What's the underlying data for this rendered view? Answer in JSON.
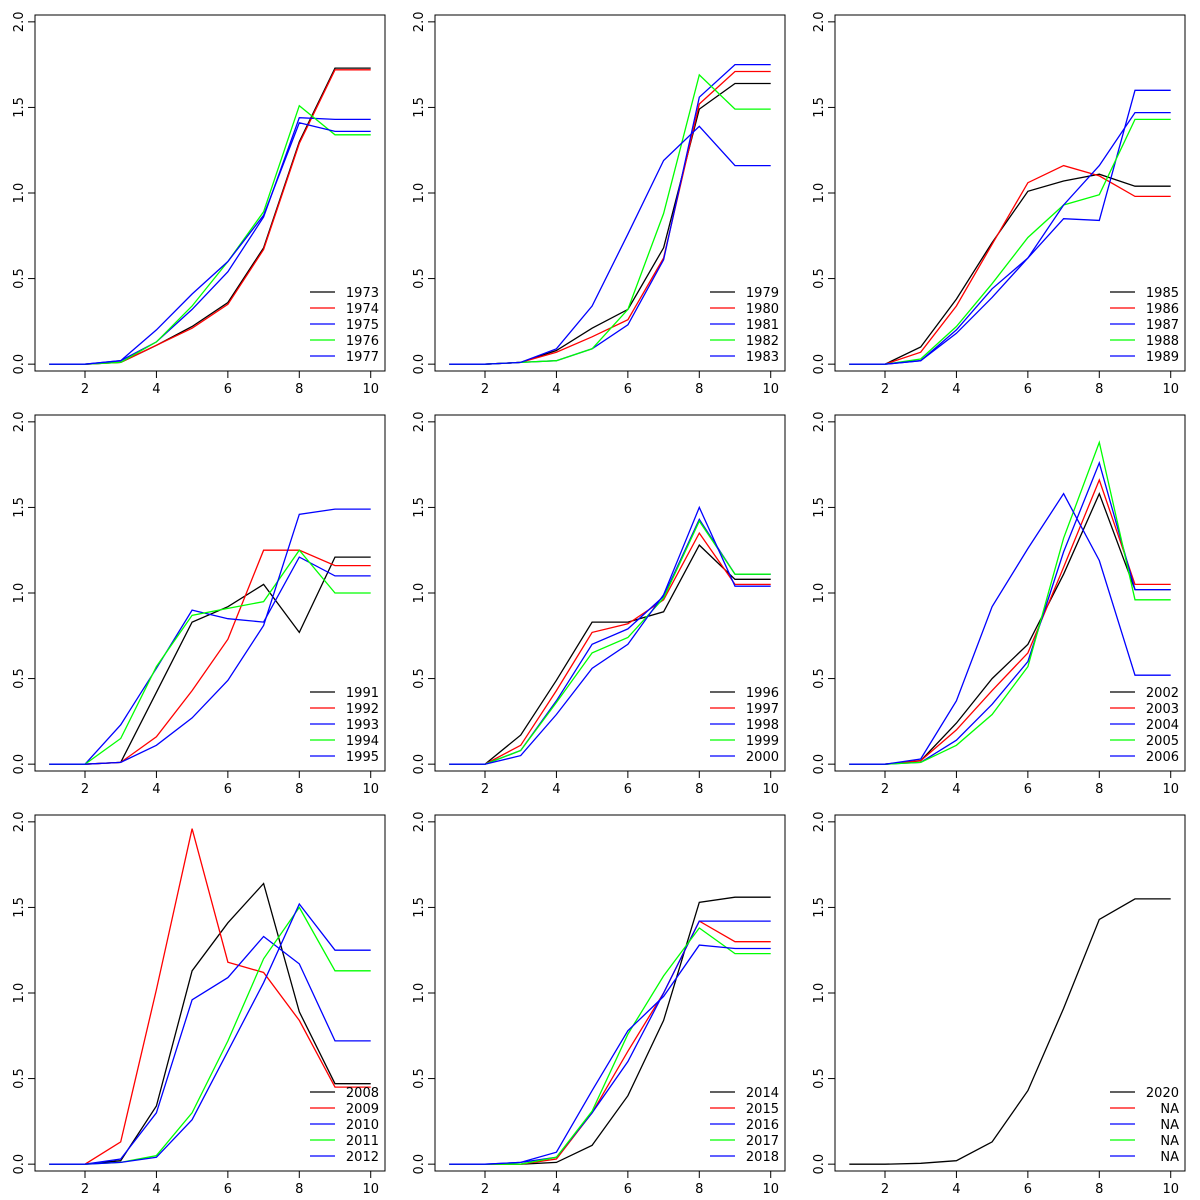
{
  "legend_colors": [
    "#000000",
    "#ff0000",
    "#0000ff",
    "#00ff00",
    "#0000ff"
  ],
  "chart_data": [
    {
      "type": "line",
      "x": [
        1,
        2,
        3,
        4,
        5,
        6,
        7,
        8,
        9,
        10
      ],
      "xticks": [
        2,
        4,
        6,
        8,
        10
      ],
      "yticks": [
        "0.0",
        "0.5",
        "1.0",
        "1.5",
        "2.0"
      ],
      "xlim": [
        0.6,
        10.4
      ],
      "ylim": [
        -0.04,
        2.04
      ],
      "legend_position": "bottom-right",
      "series": [
        {
          "name": "1973",
          "values": [
            0,
            0,
            0.01,
            0.11,
            0.22,
            0.36,
            0.68,
            1.3,
            1.73,
            1.73
          ]
        },
        {
          "name": "1974",
          "values": [
            0,
            0,
            0.01,
            0.11,
            0.21,
            0.35,
            0.67,
            1.29,
            1.72,
            1.72
          ]
        },
        {
          "name": "1975",
          "values": [
            0,
            0,
            0.02,
            0.13,
            0.32,
            0.54,
            0.86,
            1.44,
            1.43,
            1.43
          ]
        },
        {
          "name": "1976",
          "values": [
            0,
            0,
            0.01,
            0.13,
            0.34,
            0.6,
            0.89,
            1.51,
            1.34,
            1.34
          ]
        },
        {
          "name": "1977",
          "values": [
            0,
            0,
            0.02,
            0.2,
            0.41,
            0.6,
            0.87,
            1.41,
            1.36,
            1.36
          ]
        }
      ]
    },
    {
      "type": "line",
      "x": [
        1,
        2,
        3,
        4,
        5,
        6,
        7,
        8,
        9,
        10
      ],
      "xticks": [
        2,
        4,
        6,
        8,
        10
      ],
      "yticks": [
        "0.0",
        "0.5",
        "1.0",
        "1.5",
        "2.0"
      ],
      "xlim": [
        0.6,
        10.4
      ],
      "ylim": [
        -0.04,
        2.04
      ],
      "legend_position": "bottom-right",
      "series": [
        {
          "name": "1979",
          "values": [
            0,
            0,
            0.01,
            0.08,
            0.21,
            0.32,
            0.68,
            1.49,
            1.64,
            1.64
          ]
        },
        {
          "name": "1980",
          "values": [
            0,
            0,
            0.01,
            0.07,
            0.16,
            0.26,
            0.62,
            1.52,
            1.71,
            1.71
          ]
        },
        {
          "name": "1981",
          "values": [
            0,
            0,
            0.01,
            0.02,
            0.09,
            0.23,
            0.61,
            1.56,
            1.75,
            1.75
          ]
        },
        {
          "name": "1982",
          "values": [
            0,
            0,
            0.01,
            0.02,
            0.09,
            0.32,
            0.88,
            1.69,
            1.49,
            1.49
          ]
        },
        {
          "name": "1983",
          "values": [
            0,
            0,
            0.01,
            0.09,
            0.34,
            0.76,
            1.19,
            1.39,
            1.16,
            1.16
          ]
        }
      ]
    },
    {
      "type": "line",
      "x": [
        1,
        2,
        3,
        4,
        5,
        6,
        7,
        8,
        9,
        10
      ],
      "xticks": [
        2,
        4,
        6,
        8,
        10
      ],
      "yticks": [
        "0.0",
        "0.5",
        "1.0",
        "1.5",
        "2.0"
      ],
      "xlim": [
        0.6,
        10.4
      ],
      "ylim": [
        -0.04,
        2.04
      ],
      "legend_position": "bottom-right",
      "series": [
        {
          "name": "1985",
          "values": [
            0,
            0,
            0.1,
            0.38,
            0.71,
            1.01,
            1.07,
            1.11,
            1.04,
            1.04
          ]
        },
        {
          "name": "1986",
          "values": [
            0,
            0,
            0.07,
            0.34,
            0.7,
            1.06,
            1.16,
            1.1,
            0.98,
            0.98
          ]
        },
        {
          "name": "1987",
          "values": [
            0,
            0,
            0.02,
            0.2,
            0.44,
            0.62,
            0.85,
            0.84,
            1.6,
            1.6
          ]
        },
        {
          "name": "1988",
          "values": [
            0,
            0,
            0.03,
            0.22,
            0.47,
            0.74,
            0.93,
            0.99,
            1.43,
            1.43
          ]
        },
        {
          "name": "1989",
          "values": [
            0,
            0,
            0.02,
            0.18,
            0.39,
            0.62,
            0.93,
            1.16,
            1.47,
            1.47
          ]
        }
      ]
    },
    {
      "type": "line",
      "x": [
        1,
        2,
        3,
        4,
        5,
        6,
        7,
        8,
        9,
        10
      ],
      "xticks": [
        2,
        4,
        6,
        8,
        10
      ],
      "yticks": [
        "0.0",
        "0.5",
        "1.0",
        "1.5",
        "2.0"
      ],
      "xlim": [
        0.6,
        10.4
      ],
      "ylim": [
        -0.04,
        2.04
      ],
      "legend_position": "bottom-right",
      "series": [
        {
          "name": "1991",
          "values": [
            0,
            0,
            0.01,
            0.42,
            0.83,
            0.92,
            1.05,
            0.77,
            1.21,
            1.21
          ]
        },
        {
          "name": "1992",
          "values": [
            0,
            0,
            0.01,
            0.16,
            0.43,
            0.73,
            1.25,
            1.25,
            1.16,
            1.16
          ]
        },
        {
          "name": "1993",
          "values": [
            0,
            0,
            0.23,
            0.56,
            0.9,
            0.85,
            0.83,
            1.21,
            1.1,
            1.1
          ]
        },
        {
          "name": "1994",
          "values": [
            0,
            0,
            0.15,
            0.57,
            0.87,
            0.91,
            0.95,
            1.25,
            1.0,
            1.0
          ]
        },
        {
          "name": "1995",
          "values": [
            0,
            0,
            0.01,
            0.11,
            0.27,
            0.49,
            0.81,
            1.46,
            1.49,
            1.49
          ]
        }
      ]
    },
    {
      "type": "line",
      "x": [
        1,
        2,
        3,
        4,
        5,
        6,
        7,
        8,
        9,
        10
      ],
      "xticks": [
        2,
        4,
        6,
        8,
        10
      ],
      "yticks": [
        "0.0",
        "0.5",
        "1.0",
        "1.5",
        "2.0"
      ],
      "xlim": [
        0.6,
        10.4
      ],
      "ylim": [
        -0.04,
        2.04
      ],
      "legend_position": "bottom-right",
      "series": [
        {
          "name": "1996",
          "values": [
            0,
            0,
            0.17,
            0.49,
            0.83,
            0.83,
            0.89,
            1.28,
            1.08,
            1.08
          ]
        },
        {
          "name": "1997",
          "values": [
            0,
            0,
            0.11,
            0.43,
            0.77,
            0.82,
            0.96,
            1.35,
            1.05,
            1.05
          ]
        },
        {
          "name": "1998",
          "values": [
            0,
            0,
            0.08,
            0.37,
            0.7,
            0.79,
            0.98,
            1.43,
            1.11,
            1.11
          ]
        },
        {
          "name": "1999",
          "values": [
            0,
            0,
            0.08,
            0.36,
            0.65,
            0.74,
            0.97,
            1.42,
            1.11,
            1.11
          ]
        },
        {
          "name": "2000",
          "values": [
            0,
            0,
            0.05,
            0.29,
            0.56,
            0.7,
            0.99,
            1.5,
            1.04,
            1.04
          ]
        }
      ]
    },
    {
      "type": "line",
      "x": [
        1,
        2,
        3,
        4,
        5,
        6,
        7,
        8,
        9,
        10
      ],
      "xticks": [
        2,
        4,
        6,
        8,
        10
      ],
      "yticks": [
        "0.0",
        "0.5",
        "1.0",
        "1.5",
        "2.0"
      ],
      "xlim": [
        0.6,
        10.4
      ],
      "ylim": [
        -0.04,
        2.04
      ],
      "legend_position": "bottom-right",
      "series": [
        {
          "name": "2002",
          "values": [
            0,
            0,
            0.02,
            0.24,
            0.5,
            0.7,
            1.11,
            1.58,
            1.02,
            1.02
          ]
        },
        {
          "name": "2003",
          "values": [
            0,
            0,
            0.02,
            0.2,
            0.43,
            0.65,
            1.15,
            1.66,
            1.05,
            1.05
          ]
        },
        {
          "name": "2004",
          "values": [
            0,
            0,
            0.01,
            0.14,
            0.35,
            0.6,
            1.24,
            1.76,
            1.02,
            1.02
          ]
        },
        {
          "name": "2005",
          "values": [
            0,
            0,
            0.01,
            0.11,
            0.29,
            0.57,
            1.32,
            1.88,
            0.96,
            0.96
          ]
        },
        {
          "name": "2006",
          "values": [
            0,
            0,
            0.03,
            0.37,
            0.92,
            1.26,
            1.58,
            1.19,
            0.52,
            0.52
          ]
        }
      ]
    },
    {
      "type": "line",
      "x": [
        1,
        2,
        3,
        4,
        5,
        6,
        7,
        8,
        9,
        10
      ],
      "xticks": [
        2,
        4,
        6,
        8,
        10
      ],
      "yticks": [
        "0.0",
        "0.5",
        "1.0",
        "1.5",
        "2.0"
      ],
      "xlim": [
        0.6,
        10.4
      ],
      "ylim": [
        -0.04,
        2.04
      ],
      "legend_position": "bottom-right",
      "series": [
        {
          "name": "2008",
          "values": [
            0,
            0,
            0.02,
            0.34,
            1.13,
            1.41,
            1.64,
            0.89,
            0.47,
            0.47
          ]
        },
        {
          "name": "2009",
          "values": [
            0,
            0,
            0.13,
            1.02,
            1.96,
            1.18,
            1.12,
            0.84,
            0.45,
            0.45
          ]
        },
        {
          "name": "2010",
          "values": [
            0,
            0,
            0.03,
            0.3,
            0.96,
            1.09,
            1.33,
            1.17,
            0.72,
            0.72
          ]
        },
        {
          "name": "2011",
          "values": [
            0,
            0,
            0.01,
            0.05,
            0.3,
            0.72,
            1.2,
            1.5,
            1.13,
            1.13
          ]
        },
        {
          "name": "2012",
          "values": [
            0,
            0,
            0.01,
            0.04,
            0.26,
            0.66,
            1.06,
            1.52,
            1.25,
            1.25
          ]
        }
      ]
    },
    {
      "type": "line",
      "x": [
        1,
        2,
        3,
        4,
        5,
        6,
        7,
        8,
        9,
        10
      ],
      "xticks": [
        2,
        4,
        6,
        8,
        10
      ],
      "yticks": [
        "0.0",
        "0.5",
        "1.0",
        "1.5",
        "2.0"
      ],
      "xlim": [
        0.6,
        10.4
      ],
      "ylim": [
        -0.04,
        2.04
      ],
      "legend_position": "bottom-right",
      "series": [
        {
          "name": "2014",
          "values": [
            0,
            0,
            0,
            0.01,
            0.11,
            0.4,
            0.84,
            1.53,
            1.56,
            1.56
          ]
        },
        {
          "name": "2015",
          "values": [
            0,
            0,
            0,
            0.03,
            0.3,
            0.66,
            1.0,
            1.42,
            1.3,
            1.3
          ]
        },
        {
          "name": "2016",
          "values": [
            0,
            0,
            0.01,
            0.04,
            0.3,
            0.6,
            1.0,
            1.42,
            1.42,
            1.42
          ]
        },
        {
          "name": "2017",
          "values": [
            0,
            0,
            0,
            0.04,
            0.31,
            0.76,
            1.1,
            1.38,
            1.23,
            1.23
          ]
        },
        {
          "name": "2018",
          "values": [
            0,
            0,
            0.01,
            0.07,
            0.43,
            0.78,
            0.98,
            1.28,
            1.26,
            1.26
          ]
        }
      ]
    },
    {
      "type": "line",
      "x": [
        1,
        2,
        3,
        4,
        5,
        6,
        7,
        8,
        9,
        10
      ],
      "xticks": [
        2,
        4,
        6,
        8,
        10
      ],
      "yticks": [
        "0.0",
        "0.5",
        "1.0",
        "1.5",
        "2.0"
      ],
      "xlim": [
        0.6,
        10.4
      ],
      "ylim": [
        -0.04,
        2.04
      ],
      "legend_position": "bottom-right",
      "series": [
        {
          "name": "2020",
          "values": [
            0,
            0,
            0.005,
            0.02,
            0.13,
            0.43,
            0.91,
            1.43,
            1.55,
            1.55
          ]
        },
        {
          "name": "NA",
          "values": null
        },
        {
          "name": "NA",
          "values": null
        },
        {
          "name": "NA",
          "values": null
        },
        {
          "name": "NA",
          "values": null
        }
      ]
    }
  ]
}
